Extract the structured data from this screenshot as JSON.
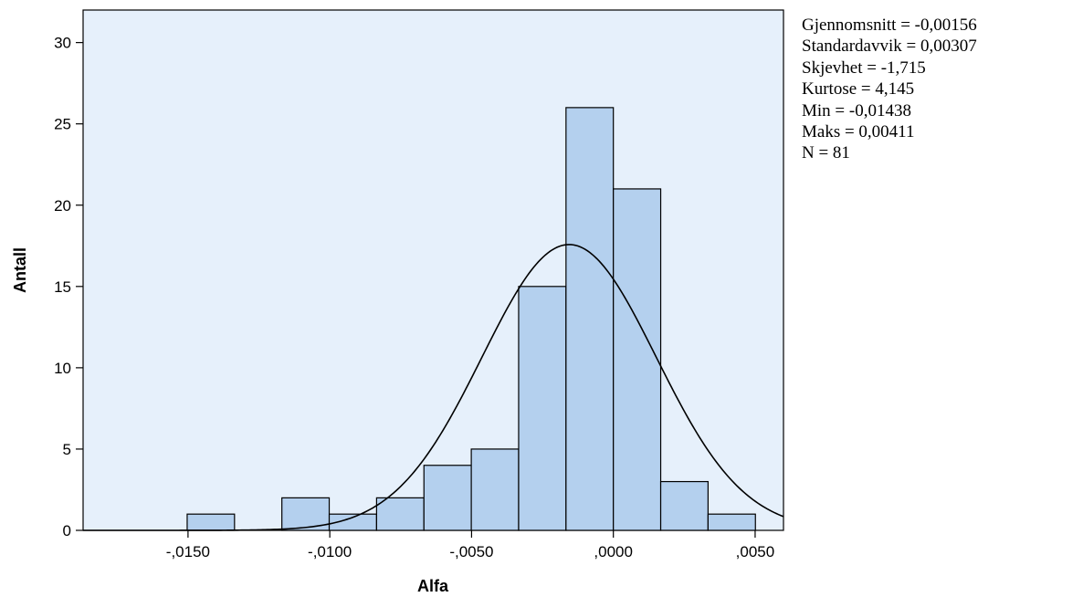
{
  "chart_data": {
    "type": "bar",
    "title": "",
    "xlabel": "Alfa",
    "ylabel": "Antall",
    "bin_width": 0.00167,
    "bins": [
      {
        "start": -0.01503,
        "end": -0.01336,
        "count": 1
      },
      {
        "start": -0.01336,
        "end": -0.01169,
        "count": 0
      },
      {
        "start": -0.01169,
        "end": -0.01002,
        "count": 2
      },
      {
        "start": -0.01002,
        "end": -0.00835,
        "count": 1
      },
      {
        "start": -0.00835,
        "end": -0.00668,
        "count": 2
      },
      {
        "start": -0.00668,
        "end": -0.00501,
        "count": 4
      },
      {
        "start": -0.00501,
        "end": -0.00334,
        "count": 5
      },
      {
        "start": -0.00334,
        "end": -0.00167,
        "count": 15
      },
      {
        "start": -0.00167,
        "end": 0.0,
        "count": 26
      },
      {
        "start": 0.0,
        "end": 0.00167,
        "count": 21
      },
      {
        "start": 0.00167,
        "end": 0.00334,
        "count": 3
      },
      {
        "start": 0.00334,
        "end": 0.00501,
        "count": 1
      }
    ],
    "xlim": [
      -0.0187,
      0.006
    ],
    "ylim": [
      0,
      32
    ],
    "x_ticks": [
      -0.015,
      -0.01,
      -0.005,
      0.0,
      0.005
    ],
    "x_tick_labels": [
      "-,0150",
      "-,0100",
      "-,0050",
      ",0000",
      ",0050"
    ],
    "y_ticks": [
      0,
      5,
      10,
      15,
      20,
      25,
      30
    ],
    "y_tick_labels": [
      "0",
      "5",
      "10",
      "15",
      "20",
      "25",
      "30"
    ],
    "normal_curve": {
      "mean": -0.00156,
      "sd": 0.00307,
      "n": 81
    },
    "grid": false,
    "colors": {
      "plot_background": "#e6f0fb",
      "bar_fill": "#b4d0ee",
      "bar_stroke": "#000000",
      "curve": "#000000"
    }
  },
  "stats": [
    "Gjennomsnitt = -0,00156",
    "Standardavvik = 0,00307",
    "Skjevhet = -1,715",
    "Kurtose = 4,145",
    "Min = -0,01438",
    "Maks = 0,00411",
    "N = 81"
  ]
}
